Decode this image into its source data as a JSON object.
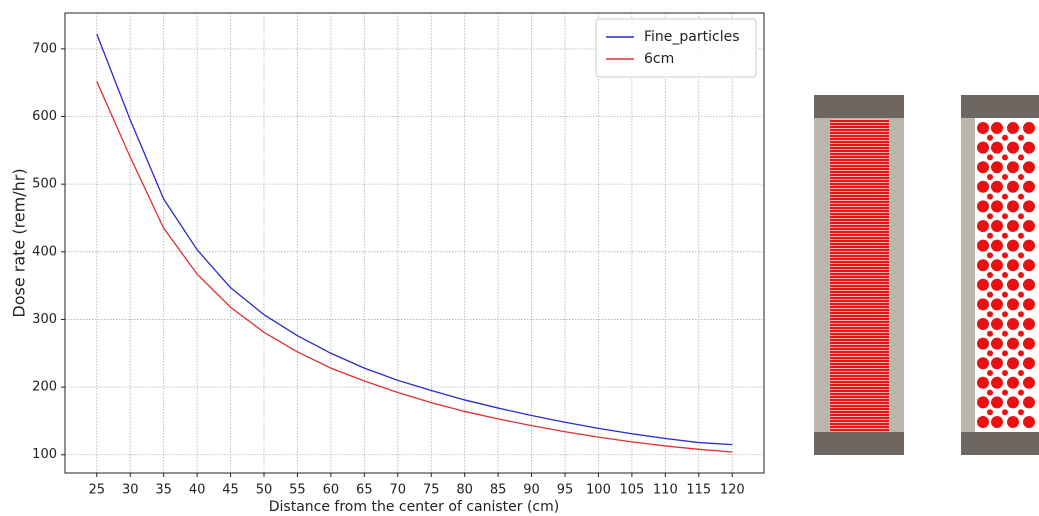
{
  "chart_data": {
    "type": "line",
    "xlabel": "Distance from the center of canister (cm)",
    "ylabel": "Dose rate (rem/hr)",
    "x": [
      25,
      30,
      35,
      40,
      45,
      50,
      55,
      60,
      65,
      70,
      75,
      80,
      85,
      90,
      95,
      100,
      105,
      110,
      115,
      120
    ],
    "series": [
      {
        "name": "Fine_particles",
        "color": "#2a2ad0",
        "values": [
          722,
          595,
          478,
          403,
          347,
          307,
          276,
          250,
          228,
          210,
          195,
          181,
          169,
          158,
          148,
          139,
          131,
          124,
          118,
          115
        ]
      },
      {
        "name": "6cm",
        "color": "#e03030",
        "values": [
          652,
          540,
          435,
          367,
          318,
          281,
          252,
          228,
          209,
          192,
          177,
          164,
          153,
          143,
          134,
          126,
          119,
          113,
          108,
          104
        ]
      }
    ],
    "xlim": [
      20.25,
      124.75
    ],
    "ylim": [
      73,
      753
    ],
    "xticks": [
      25,
      30,
      35,
      40,
      45,
      50,
      55,
      60,
      65,
      70,
      75,
      80,
      85,
      90,
      95,
      100,
      105,
      110,
      115,
      120
    ],
    "yticks": [
      100,
      200,
      300,
      400,
      500,
      600,
      700
    ],
    "grid": true,
    "legend": "upper right"
  }
}
